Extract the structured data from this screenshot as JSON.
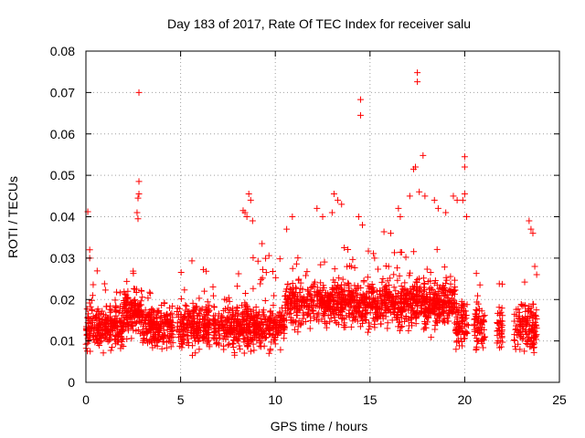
{
  "chart_data": {
    "type": "scatter",
    "title": "Day 183 of 2017, Rate Of TEC Index for receiver salu",
    "xlabel": "GPS time / hours",
    "ylabel": "ROTI / TECUs",
    "xlim": [
      0,
      25
    ],
    "ylim": [
      0,
      0.08
    ],
    "xticks": [
      "0",
      "5",
      "10",
      "15",
      "20",
      "25"
    ],
    "yticks": [
      "0",
      "0.01",
      "0.02",
      "0.03",
      "0.04",
      "0.05",
      "0.06",
      "0.07",
      "0.08"
    ],
    "grid": true,
    "marker": "+",
    "color": "#ff0000",
    "series": [
      {
        "points": [
          [
            0.1,
            0.0412
          ],
          [
            0.2,
            0.032
          ],
          [
            0.2,
            0.03
          ],
          [
            2.8,
            0.07
          ],
          [
            2.8,
            0.0485
          ],
          [
            2.8,
            0.0455
          ],
          [
            2.75,
            0.0445
          ],
          [
            2.7,
            0.041
          ],
          [
            2.75,
            0.0395
          ],
          [
            8.3,
            0.0415
          ],
          [
            8.4,
            0.041
          ],
          [
            8.5,
            0.04
          ],
          [
            8.6,
            0.0455
          ],
          [
            8.7,
            0.044
          ],
          [
            8.8,
            0.039
          ],
          [
            9.3,
            0.0335
          ],
          [
            10.6,
            0.037
          ],
          [
            10.9,
            0.04
          ],
          [
            12.2,
            0.042
          ],
          [
            12.5,
            0.04
          ],
          [
            13.1,
            0.0455
          ],
          [
            13.3,
            0.044
          ],
          [
            13.5,
            0.043
          ],
          [
            13.0,
            0.041
          ],
          [
            14.5,
            0.0683
          ],
          [
            14.5,
            0.0645
          ],
          [
            14.4,
            0.04
          ],
          [
            14.6,
            0.038
          ],
          [
            16.5,
            0.042
          ],
          [
            16.6,
            0.04
          ],
          [
            17.1,
            0.045
          ],
          [
            17.3,
            0.0515
          ],
          [
            17.4,
            0.052
          ],
          [
            17.5,
            0.0748
          ],
          [
            17.5,
            0.0726
          ],
          [
            17.6,
            0.046
          ],
          [
            17.8,
            0.0548
          ],
          [
            17.9,
            0.045
          ],
          [
            18.4,
            0.044
          ],
          [
            18.6,
            0.042
          ],
          [
            19.0,
            0.041
          ],
          [
            19.4,
            0.045
          ],
          [
            19.6,
            0.044
          ],
          [
            20.0,
            0.0545
          ],
          [
            20.0,
            0.052
          ],
          [
            20.0,
            0.0455
          ],
          [
            19.9,
            0.044
          ],
          [
            20.1,
            0.04
          ],
          [
            23.4,
            0.039
          ],
          [
            23.5,
            0.037
          ],
          [
            23.6,
            0.036
          ],
          [
            23.7,
            0.028
          ],
          [
            23.8,
            0.026
          ]
        ]
      }
    ]
  }
}
